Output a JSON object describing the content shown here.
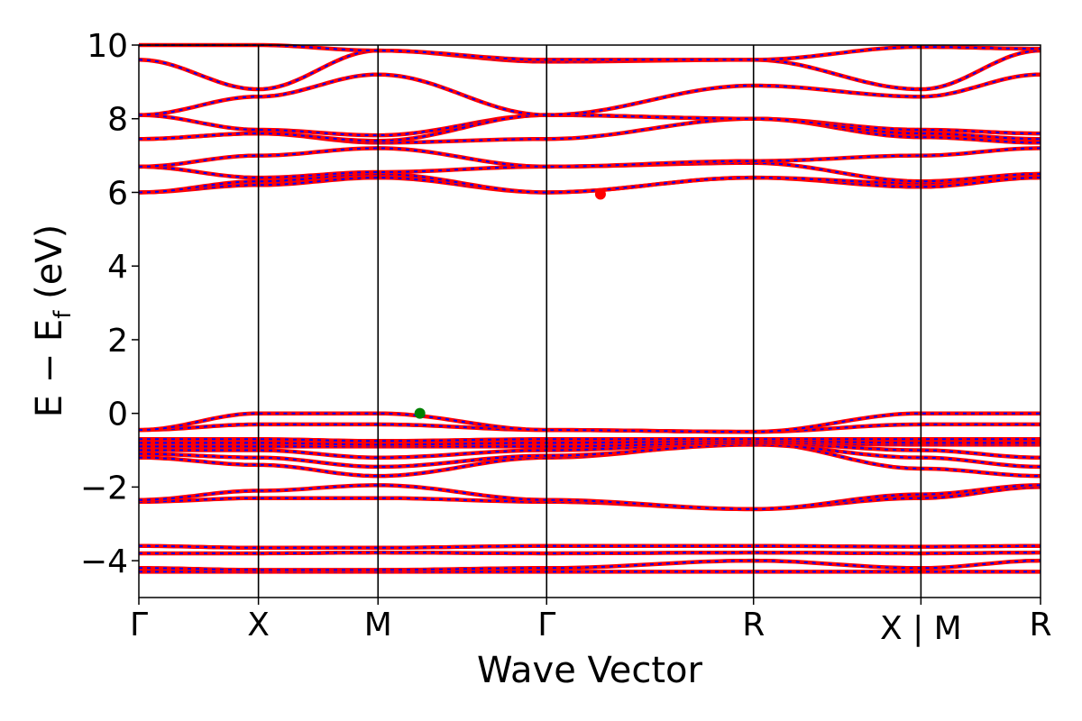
{
  "chart_data": {
    "type": "line",
    "xlabel": "Wave Vector",
    "ylabel": "E − E",
    "ylabel_sub": "f",
    "ylabel_unit": " (eV)",
    "ylim": [
      -5,
      10
    ],
    "yticks": [
      {
        "value": 10,
        "label": "10"
      },
      {
        "value": 8,
        "label": "8"
      },
      {
        "value": 6,
        "label": "6"
      },
      {
        "value": 4,
        "label": "4"
      },
      {
        "value": 2,
        "label": "2"
      },
      {
        "value": 0,
        "label": "0"
      },
      {
        "value": -2,
        "label": "−2"
      },
      {
        "value": -4,
        "label": "−4"
      }
    ],
    "xlim": [
      0,
      7.54
    ],
    "kpoints": [
      {
        "x": 0.0,
        "label": "Γ"
      },
      {
        "x": 1.0,
        "label": "X"
      },
      {
        "x": 2.0,
        "label": "M"
      },
      {
        "x": 3.41,
        "label": "Γ"
      },
      {
        "x": 5.14,
        "label": "R"
      },
      {
        "x": 6.54,
        "label": "X | M"
      },
      {
        "x": 7.54,
        "label": "R"
      }
    ],
    "line_colors": {
      "spin_up": "#ff0000",
      "spin_down": "#0000ff"
    },
    "vbm": {
      "x": 2.35,
      "y": 0.0,
      "color": "#008000"
    },
    "cbm": {
      "x": 3.86,
      "y": 5.95,
      "color": "#ff0000"
    },
    "bands": [
      {
        "y": [
          -4.3,
          -4.3,
          -4.3,
          -4.3,
          -4.3,
          -4.3,
          -4.3,
          -4.3
        ]
      },
      {
        "y": [
          -4.2,
          -4.25,
          -4.25,
          -4.2,
          -4.0,
          -4.2,
          -4.0,
          -4.0
        ]
      },
      {
        "y": [
          -3.8,
          -3.8,
          -3.78,
          -3.8,
          -3.78,
          -3.8,
          -3.78,
          -3.78
        ]
      },
      {
        "y": [
          -3.6,
          -3.65,
          -3.65,
          -3.6,
          -3.6,
          -3.62,
          -3.6,
          -3.6
        ]
      },
      {
        "y": [
          -2.4,
          -2.3,
          -2.3,
          -2.4,
          -2.6,
          -2.3,
          -2.0,
          -2.6
        ]
      },
      {
        "y": [
          -2.35,
          -2.1,
          -1.95,
          -2.35,
          -2.6,
          -2.2,
          -1.95,
          -2.6
        ]
      },
      {
        "y": [
          -1.2,
          -1.4,
          -1.7,
          -1.2,
          -0.8,
          -1.5,
          -1.7,
          -1.0
        ]
      },
      {
        "y": [
          -1.1,
          -1.2,
          -1.45,
          -1.15,
          -0.85,
          -1.2,
          -1.45,
          -0.95
        ]
      },
      {
        "y": [
          -1.0,
          -1.0,
          -1.2,
          -1.0,
          -0.8,
          -1.0,
          -1.2,
          -0.9
        ]
      },
      {
        "y": [
          -0.9,
          -0.9,
          -0.9,
          -0.9,
          -0.8,
          -0.85,
          -0.85,
          -0.85
        ]
      },
      {
        "y": [
          -0.8,
          -0.8,
          -0.85,
          -0.8,
          -0.75,
          -0.8,
          -0.8,
          -0.8
        ]
      },
      {
        "y": [
          -0.7,
          -0.7,
          -0.75,
          -0.7,
          -0.7,
          -0.7,
          -0.7,
          -0.7
        ]
      },
      {
        "y": [
          -0.45,
          -0.3,
          -0.3,
          -0.45,
          -0.5,
          -0.3,
          -0.3,
          -0.45
        ]
      },
      {
        "y": [
          -0.45,
          0.0,
          0.0,
          -0.45,
          -0.5,
          0.0,
          0.0,
          -0.45
        ]
      },
      {
        "y": [
          6.0,
          6.2,
          6.4,
          6.0,
          6.4,
          6.15,
          6.4,
          6.4
        ]
      },
      {
        "y": [
          6.0,
          6.3,
          6.5,
          6.0,
          6.4,
          6.25,
          6.5,
          6.45
        ]
      },
      {
        "y": [
          6.7,
          6.4,
          6.55,
          6.7,
          6.8,
          6.3,
          6.5,
          6.8
        ]
      },
      {
        "y": [
          6.7,
          7.0,
          7.2,
          6.7,
          6.85,
          7.0,
          7.2,
          6.85
        ]
      },
      {
        "y": [
          7.45,
          7.6,
          7.35,
          7.45,
          8.0,
          7.5,
          7.35,
          8.0
        ]
      },
      {
        "y": [
          8.1,
          7.7,
          7.55,
          8.1,
          8.0,
          7.7,
          7.6,
          8.0
        ]
      },
      {
        "y": [
          7.45,
          7.6,
          7.4,
          8.1,
          8.0,
          7.6,
          7.45,
          8.0
        ]
      },
      {
        "y": [
          8.1,
          8.6,
          9.2,
          8.1,
          8.9,
          8.6,
          9.2,
          8.9
        ]
      },
      {
        "y": [
          9.6,
          8.8,
          9.85,
          9.55,
          9.6,
          8.8,
          9.85,
          9.6
        ]
      },
      {
        "y": [
          10.0,
          10.0,
          9.85,
          9.6,
          9.6,
          9.95,
          9.9,
          9.6
        ]
      }
    ]
  }
}
